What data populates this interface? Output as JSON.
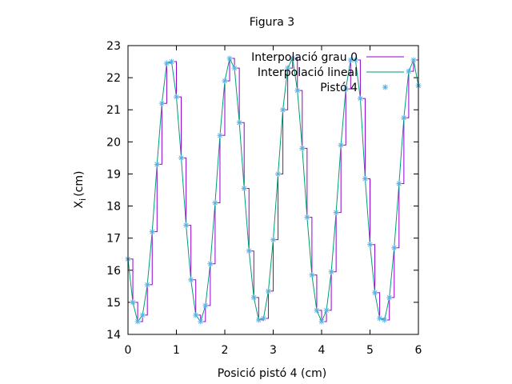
{
  "chart_data": {
    "type": "line",
    "title": "Figura 3",
    "xlabel": "Posició pistó 4 (cm)",
    "ylabel_main": "X",
    "ylabel_sub": "i",
    "ylabel_unit": "(cm)",
    "xlim": [
      0,
      6
    ],
    "ylim": [
      14,
      23
    ],
    "x_ticks": [
      0,
      1,
      2,
      3,
      4,
      5,
      6
    ],
    "y_ticks": [
      14,
      15,
      16,
      17,
      18,
      19,
      20,
      21,
      22,
      23
    ],
    "grid": false,
    "legend_position": "top-right",
    "series": [
      {
        "name": "Interpolació grau 0",
        "style": "step",
        "color": "#9400d3",
        "x": [
          0,
          0.1,
          0.2,
          0.3,
          0.4,
          0.5,
          0.6,
          0.7,
          0.8,
          0.9,
          1.0,
          1.1,
          1.2,
          1.3,
          1.4,
          1.5,
          1.6,
          1.7,
          1.8,
          1.9,
          2.0,
          2.1,
          2.2,
          2.3,
          2.4,
          2.5,
          2.6,
          2.7,
          2.8,
          2.9,
          3.0,
          3.1,
          3.2,
          3.3,
          3.4,
          3.5,
          3.6,
          3.7,
          3.8,
          3.9,
          4.0,
          4.1,
          4.2,
          4.3,
          4.4,
          4.5,
          4.6,
          4.7,
          4.8,
          4.9,
          5.0,
          5.1,
          5.2,
          5.3,
          5.4,
          5.5,
          5.6,
          5.7,
          5.8,
          5.9,
          6.0
        ],
        "values": [
          16.35,
          15.0,
          14.4,
          14.6,
          15.55,
          17.2,
          19.3,
          21.2,
          22.45,
          22.5,
          21.4,
          19.5,
          17.4,
          15.7,
          14.6,
          14.4,
          14.9,
          16.2,
          18.1,
          20.2,
          21.9,
          22.6,
          22.3,
          20.6,
          18.55,
          16.6,
          15.15,
          14.45,
          14.5,
          15.35,
          16.95,
          19.0,
          21.0,
          22.3,
          22.6,
          21.6,
          19.8,
          17.65,
          15.85,
          14.75,
          14.4,
          14.75,
          15.95,
          17.8,
          19.9,
          21.65,
          22.55,
          22.55,
          21.35,
          18.85,
          16.8,
          15.3,
          14.5,
          14.45,
          15.15,
          16.7,
          18.7,
          20.75,
          22.2,
          22.55,
          21.75
        ]
      },
      {
        "name": "Interpolació lineal",
        "style": "line",
        "color": "#009e73",
        "x": [
          0,
          0.1,
          0.2,
          0.3,
          0.4,
          0.5,
          0.6,
          0.7,
          0.8,
          0.9,
          1.0,
          1.1,
          1.2,
          1.3,
          1.4,
          1.5,
          1.6,
          1.7,
          1.8,
          1.9,
          2.0,
          2.1,
          2.2,
          2.3,
          2.4,
          2.5,
          2.6,
          2.7,
          2.8,
          2.9,
          3.0,
          3.1,
          3.2,
          3.3,
          3.4,
          3.5,
          3.6,
          3.7,
          3.8,
          3.9,
          4.0,
          4.1,
          4.2,
          4.3,
          4.4,
          4.5,
          4.6,
          4.7,
          4.8,
          4.9,
          5.0,
          5.1,
          5.2,
          5.3,
          5.4,
          5.5,
          5.6,
          5.7,
          5.8,
          5.9,
          6.0
        ],
        "values": [
          16.35,
          15.0,
          14.4,
          14.6,
          15.55,
          17.2,
          19.3,
          21.2,
          22.45,
          22.5,
          21.4,
          19.5,
          17.4,
          15.7,
          14.6,
          14.4,
          14.9,
          16.2,
          18.1,
          20.2,
          21.9,
          22.6,
          22.3,
          20.6,
          18.55,
          16.6,
          15.15,
          14.45,
          14.5,
          15.35,
          16.95,
          19.0,
          21.0,
          22.3,
          22.6,
          21.6,
          19.8,
          17.65,
          15.85,
          14.75,
          14.4,
          14.75,
          15.95,
          17.8,
          19.9,
          21.65,
          22.55,
          22.55,
          21.35,
          18.85,
          16.8,
          15.3,
          14.5,
          14.45,
          15.15,
          16.7,
          18.7,
          20.75,
          22.2,
          22.55,
          21.75
        ]
      },
      {
        "name": "Pistó 4",
        "style": "points",
        "marker": "asterisk",
        "color": "#56b4e9",
        "x": [
          0,
          0.1,
          0.2,
          0.3,
          0.4,
          0.5,
          0.6,
          0.7,
          0.8,
          0.9,
          1.0,
          1.1,
          1.2,
          1.3,
          1.4,
          1.5,
          1.6,
          1.7,
          1.8,
          1.9,
          2.0,
          2.1,
          2.2,
          2.3,
          2.4,
          2.5,
          2.6,
          2.7,
          2.8,
          2.9,
          3.0,
          3.1,
          3.2,
          3.3,
          3.4,
          3.5,
          3.6,
          3.7,
          3.8,
          3.9,
          4.0,
          4.1,
          4.2,
          4.3,
          4.4,
          4.5,
          4.6,
          4.7,
          4.8,
          4.9,
          5.0,
          5.1,
          5.2,
          5.3,
          5.4,
          5.5,
          5.6,
          5.7,
          5.8,
          5.9,
          6.0
        ],
        "values": [
          16.35,
          15.0,
          14.4,
          14.6,
          15.55,
          17.2,
          19.3,
          21.2,
          22.45,
          22.5,
          21.4,
          19.5,
          17.4,
          15.7,
          14.6,
          14.4,
          14.9,
          16.2,
          18.1,
          20.2,
          21.9,
          22.6,
          22.3,
          20.6,
          18.55,
          16.6,
          15.15,
          14.45,
          14.5,
          15.35,
          16.95,
          19.0,
          21.0,
          22.3,
          22.6,
          21.6,
          19.8,
          17.65,
          15.85,
          14.75,
          14.4,
          14.75,
          15.95,
          17.8,
          19.9,
          21.65,
          22.55,
          22.55,
          21.35,
          18.85,
          16.8,
          15.3,
          14.5,
          14.45,
          15.15,
          16.7,
          18.7,
          20.75,
          22.2,
          22.55,
          21.75
        ]
      }
    ]
  }
}
